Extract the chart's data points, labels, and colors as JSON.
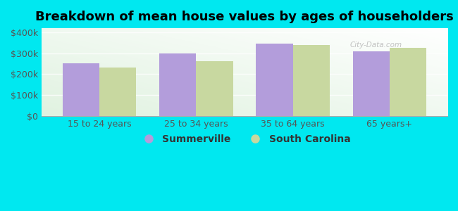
{
  "title": "Breakdown of mean house values by ages of householders",
  "categories": [
    "15 to 24 years",
    "25 to 34 years",
    "35 to 64 years",
    "65 years+"
  ],
  "summerville_values": [
    253000,
    298000,
    347000,
    310000
  ],
  "sc_values": [
    232000,
    263000,
    340000,
    327000
  ],
  "bar_color_summerville": "#b39ddb",
  "bar_color_sc": "#c8d8a0",
  "background_color": "#00e8f0",
  "ylim": [
    0,
    420000
  ],
  "yticks": [
    0,
    100000,
    200000,
    300000,
    400000
  ],
  "ytick_labels": [
    "$0",
    "$100k",
    "$200k",
    "$300k",
    "$400k"
  ],
  "legend_labels": [
    "Summerville",
    "South Carolina"
  ],
  "title_fontsize": 13,
  "tick_fontsize": 9,
  "legend_fontsize": 10,
  "bar_width": 0.38
}
